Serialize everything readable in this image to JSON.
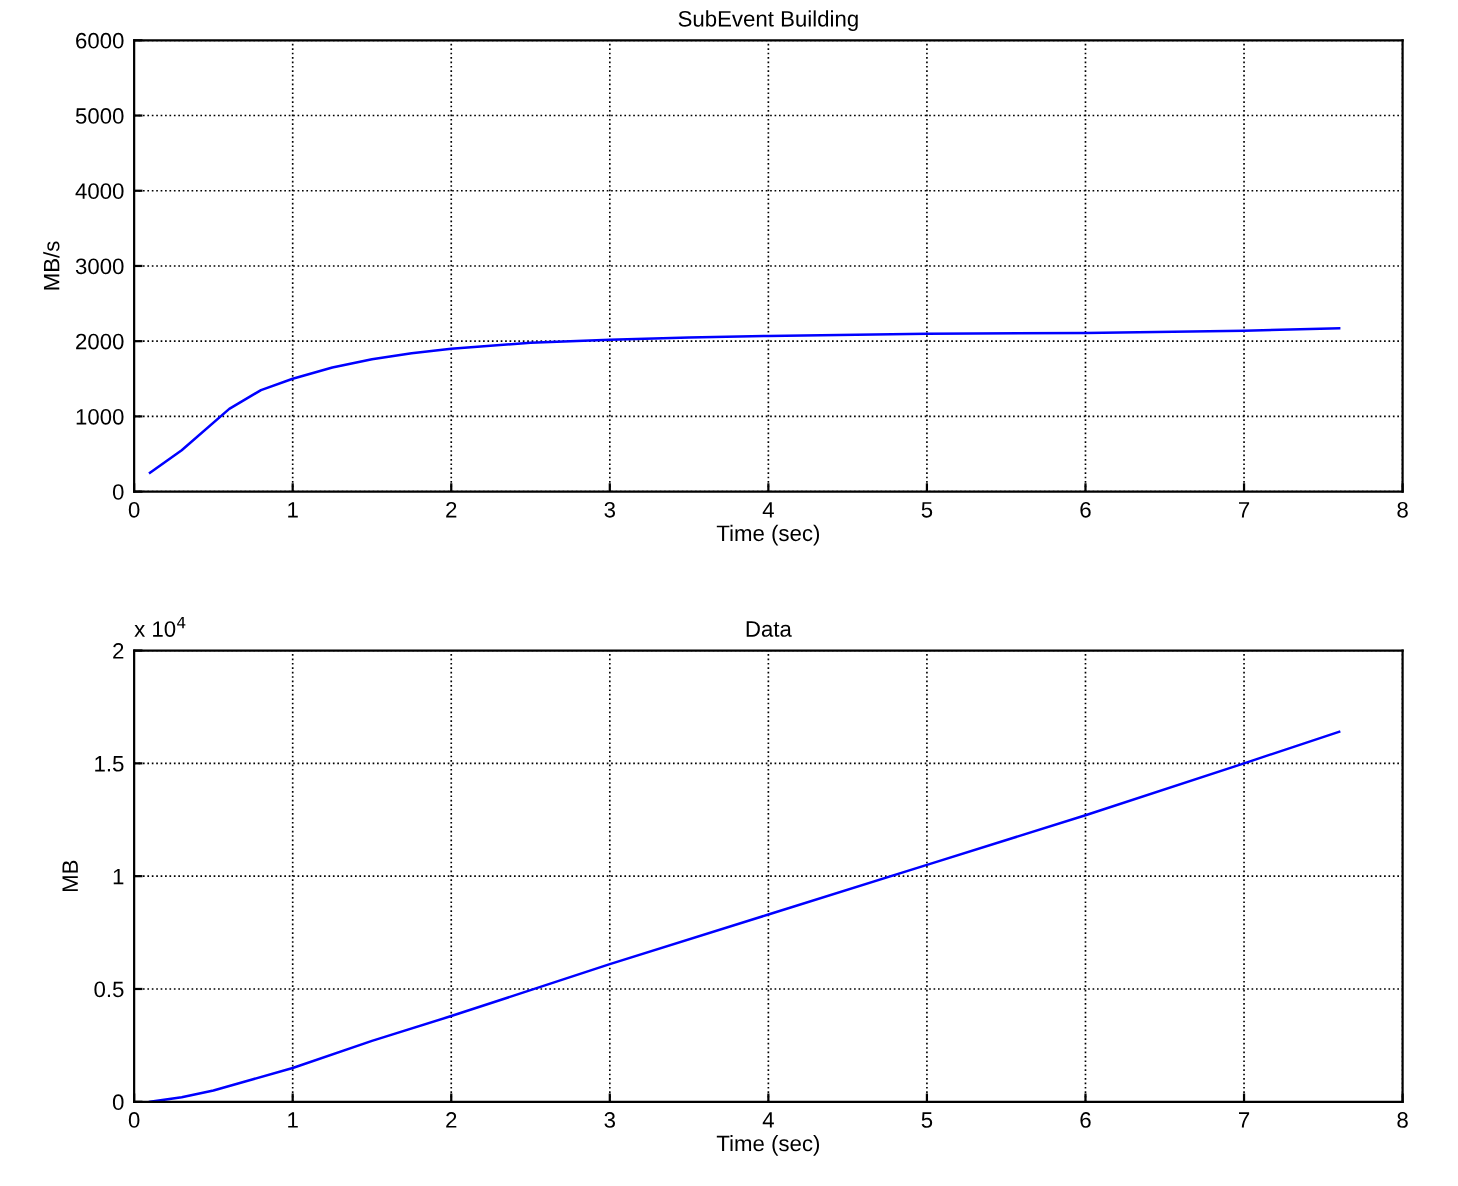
{
  "chart_data": [
    {
      "type": "line",
      "title": "SubEvent Building",
      "xlabel": "Time (sec)",
      "ylabel": "MB/s",
      "grid": true,
      "series": [
        {
          "color": "#0000ff",
          "x": [
            0.1,
            0.3,
            0.6,
            0.8,
            1.0,
            1.25,
            1.5,
            1.75,
            2.0,
            2.5,
            3.0,
            3.5,
            4.0,
            5.0,
            6.0,
            7.0,
            7.6
          ],
          "values": [
            250,
            550,
            1100,
            1350,
            1500,
            1650,
            1760,
            1840,
            1900,
            1980,
            2020,
            2050,
            2070,
            2100,
            2110,
            2140,
            2170
          ]
        }
      ],
      "xlim": [
        0,
        8
      ],
      "ylim": [
        0,
        6000
      ],
      "xticks": [
        0,
        1,
        2,
        3,
        4,
        5,
        6,
        7,
        8
      ],
      "yticks": [
        0,
        1000,
        2000,
        3000,
        4000,
        5000,
        6000
      ]
    },
    {
      "type": "line",
      "title": "Data",
      "xlabel": "Time (sec)",
      "ylabel": "MB",
      "grid": true,
      "annotations": [
        "x 10$^{4}$"
      ],
      "series": [
        {
          "color": "#0000ff",
          "x": [
            0.1,
            0.3,
            0.5,
            0.75,
            1.0,
            1.5,
            2.0,
            3.0,
            4.0,
            5.0,
            6.0,
            7.0,
            7.6
          ],
          "values": [
            0,
            0.02,
            0.05,
            0.1,
            0.15,
            0.27,
            0.38,
            0.61,
            0.83,
            1.05,
            1.27,
            1.5,
            1.64
          ]
        }
      ],
      "xlim": [
        0,
        8
      ],
      "ylim": [
        0,
        2
      ],
      "xticks": [
        0,
        1,
        2,
        3,
        4,
        5,
        6,
        7,
        8
      ],
      "yticks": [
        0,
        0.5,
        1,
        1.5,
        2
      ]
    }
  ]
}
